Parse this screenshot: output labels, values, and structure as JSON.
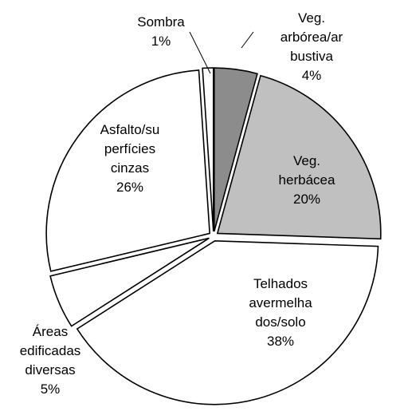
{
  "chart_data": {
    "type": "pie",
    "slices": [
      {
        "label": [
          "Veg.",
          "arbórea/ar",
          "bustiva",
          "4%"
        ],
        "value": 4,
        "color": "#8c8c8c"
      },
      {
        "label": [
          "Veg.",
          "herbácea",
          "20%"
        ],
        "value": 20,
        "color": "#c0c0c0"
      },
      {
        "label": [
          "Telhados",
          "avermelha",
          "dos/solo",
          "38%"
        ],
        "value": 38,
        "color": "#ffffff"
      },
      {
        "label": [
          "Áreas",
          "edificadas",
          "diversas",
          "5%"
        ],
        "value": 5,
        "color": "#ffffff"
      },
      {
        "label": [
          "Asfalto/su",
          "perfícies",
          "cinzas",
          "26%"
        ],
        "value": 26,
        "color": "#ffffff"
      },
      {
        "label": [
          "Sombra",
          "1%"
        ],
        "value": 1,
        "color": "#ffffff"
      }
    ],
    "start_angle_deg": 0,
    "direction": "clockwise",
    "exploded": true,
    "legend": "none"
  }
}
